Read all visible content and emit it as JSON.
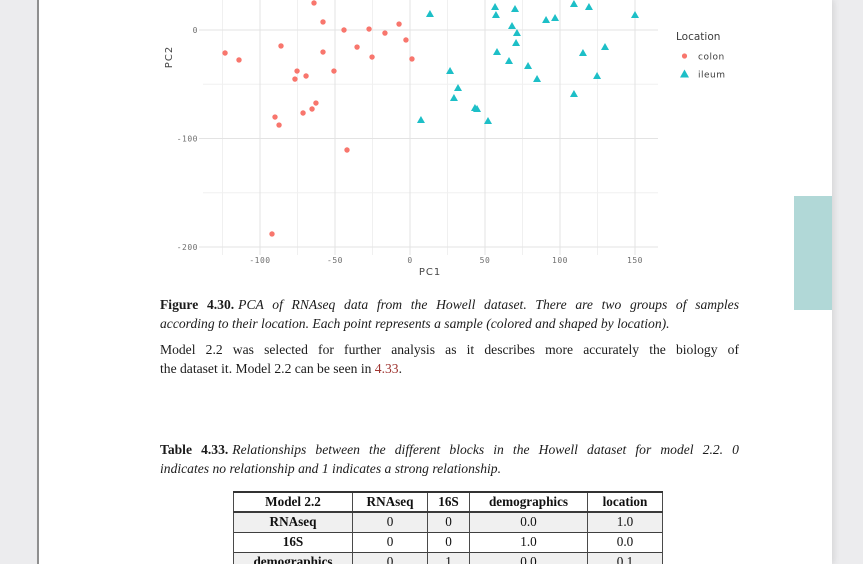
{
  "page": {
    "background_color": "#ececee",
    "paper_color": "#ffffff",
    "scroll_highlight_color": "#b1d8d7"
  },
  "chart_data": {
    "type": "scatter",
    "xlabel": "PC1",
    "ylabel": "PC2",
    "x_ticks": [
      -100,
      -50,
      0,
      50,
      100,
      150
    ],
    "y_ticks": [
      0,
      -100,
      -200
    ],
    "x_minor": [
      -125,
      -75,
      -25,
      25,
      75,
      125
    ],
    "y_minor": [
      -50,
      -150
    ],
    "grid": true,
    "legend": {
      "title": "Location",
      "position": "right",
      "entries": [
        {
          "label": "colon",
          "marker": "circle",
          "color": "#f8766d"
        },
        {
          "label": "ileum",
          "marker": "triangle",
          "color": "#1dbfc7"
        }
      ]
    },
    "series": [
      {
        "name": "colon",
        "marker": "circle",
        "color": "#f8766d",
        "points": [
          [
            -123.3,
            -21.2
          ],
          [
            -114.0,
            -27.6
          ],
          [
            -92.0,
            -188.0
          ],
          [
            -90.0,
            -80.2
          ],
          [
            -87.3,
            -87.6
          ],
          [
            -86.0,
            -14.7
          ],
          [
            -76.7,
            -45.2
          ],
          [
            -75.3,
            -37.8
          ],
          [
            -71.3,
            -76.5
          ],
          [
            -69.3,
            -42.4
          ],
          [
            -65.3,
            -72.8
          ],
          [
            -64.0,
            24.9
          ],
          [
            -62.7,
            -67.3
          ],
          [
            -58.0,
            7.4
          ],
          [
            -58.0,
            -20.3
          ],
          [
            -50.7,
            -37.8
          ],
          [
            -44.0,
            0.0
          ],
          [
            -42.0,
            -110.6
          ],
          [
            -35.3,
            -15.7
          ],
          [
            -27.3,
            0.9
          ],
          [
            -25.3,
            -24.9
          ],
          [
            -16.7,
            -2.8
          ],
          [
            -7.3,
            5.5
          ],
          [
            -2.7,
            -9.2
          ],
          [
            1.3,
            -26.7
          ]
        ]
      },
      {
        "name": "ileum",
        "marker": "triangle",
        "color": "#1dbfc7",
        "points": [
          [
            7.3,
            -82.9
          ],
          [
            13.3,
            14.7
          ],
          [
            26.7,
            -37.8
          ],
          [
            29.3,
            -62.7
          ],
          [
            32.0,
            -53.5
          ],
          [
            43.3,
            -71.9
          ],
          [
            44.7,
            -72.8
          ],
          [
            52.0,
            -83.9
          ],
          [
            56.7,
            21.2
          ],
          [
            57.3,
            13.8
          ],
          [
            58.0,
            -20.3
          ],
          [
            66.0,
            -28.6
          ],
          [
            68.0,
            3.7
          ],
          [
            70.0,
            19.4
          ],
          [
            70.7,
            -12.0
          ],
          [
            71.3,
            -2.8
          ],
          [
            78.7,
            -33.2
          ],
          [
            84.7,
            -45.2
          ],
          [
            90.7,
            9.2
          ],
          [
            96.7,
            11.1
          ],
          [
            109.3,
            24.0
          ],
          [
            109.3,
            -59.0
          ],
          [
            115.3,
            -21.2
          ],
          [
            119.3,
            21.2
          ],
          [
            124.7,
            -42.4
          ],
          [
            130.0,
            -15.7
          ],
          [
            150.0,
            13.8
          ]
        ]
      }
    ]
  },
  "figure_caption": {
    "label": "Figure 4.30.",
    "line1": "PCA of RNAseq data from the Howell dataset. There are two groups of samples",
    "line2": "according to their location. Each point represents a sample (colored and shaped by location)."
  },
  "paragraph": {
    "line1": "Model 2.2 was selected for further analysis as it describes more accurately the biology of",
    "line2_pre": "the dataset it. Model 2.2 can be seen in ",
    "link": "4.33",
    "line2_post": "."
  },
  "table_caption": {
    "label": "Table 4.33.",
    "line1": "Relationships between the different blocks in the Howell dataset for model 2.2. 0",
    "line2": "indicates no relationship and 1 indicates a strong relationship."
  },
  "table": {
    "headers": [
      "Model 2.2",
      "RNAseq",
      "16S",
      "demographics",
      "location"
    ],
    "rows": [
      {
        "label": "RNAseq",
        "values": [
          "0",
          "0",
          "0.0",
          "1.0"
        ],
        "shaded": true
      },
      {
        "label": "16S",
        "values": [
          "0",
          "0",
          "1.0",
          "0.0"
        ],
        "shaded": false
      },
      {
        "label": "demographics",
        "values": [
          "0",
          "1",
          "0.0",
          "0.1"
        ],
        "shaded": true
      }
    ]
  }
}
